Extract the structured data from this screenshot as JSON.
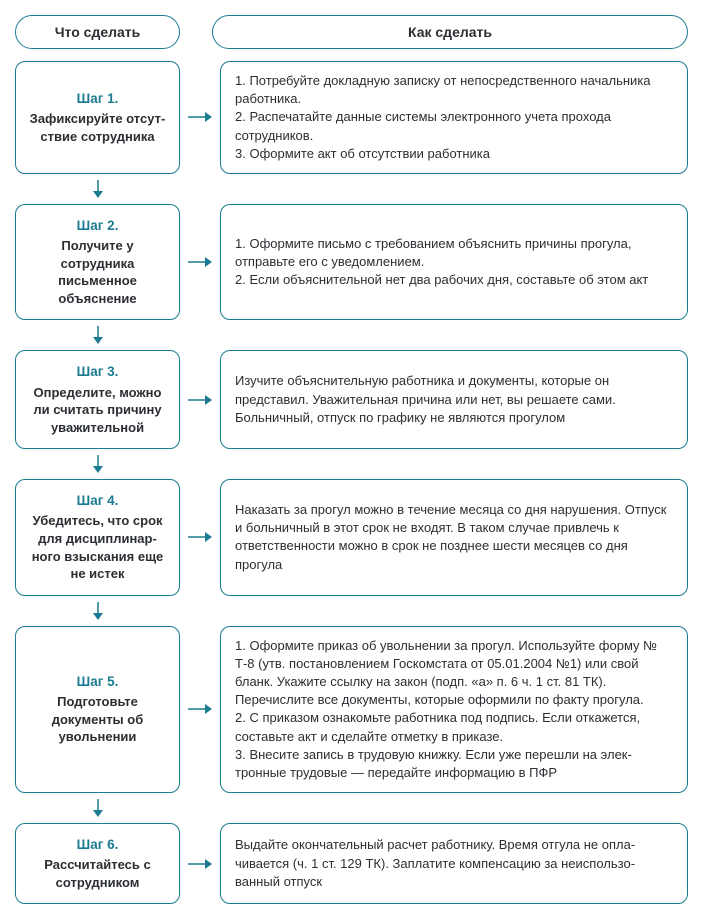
{
  "colors": {
    "border": "#1b7b90",
    "accent": "#1b7b90",
    "text": "#2b2f33",
    "background": "#ffffff"
  },
  "layout": {
    "step_box_width": 165,
    "gap": 12,
    "border_radius": 10,
    "header_radius": 18,
    "border_width": 1.5,
    "arrow_h_width": 24,
    "arrow_v_height": 18
  },
  "flow": "sequential-vertical",
  "headers": {
    "left": "Что сделать",
    "right": "Как сделать"
  },
  "steps": [
    {
      "title": "Шаг 1.",
      "text": "Зафиксируйте отсут­ствие сотрудника",
      "detail": "1. Потребуйте докладную записку от непосредственного начальни­ка работника.\n2. Распечатайте данные системы электронного учета прохода сотрудников.\n3. Оформите акт об отсутствии работника"
    },
    {
      "title": "Шаг 2.",
      "text": "Получите у сотрудника письменное объяснение",
      "detail": "1. Оформите письмо с требованием объяснить причины прогула, отправьте его с уведомлением.\n2. Если объяснительной нет два рабочих дня, составьте об этом акт"
    },
    {
      "title": "Шаг 3.",
      "text": "Определите, можно ли считать причину уважительной",
      "detail": "Изучите объяснительную работника и документы, которые он представил. Уважительная причина или нет, вы решаете сами. Больничный, отпуск по графику не являются прогулом"
    },
    {
      "title": "Шаг 4.",
      "text": "Убедитесь, что срок для дисциплинар­ного взыскания еще не истек",
      "detail": "Наказать за прогул можно в течение месяца со дня нарушения. Отпуск и больничный в этот срок не входят. В таком случае при­влечь к ответственности можно в срок не позднее шести месяцев со дня прогула"
    },
    {
      "title": "Шаг 5.",
      "text": "Подготовьте документы об увольнении",
      "detail": "1. Оформите приказ об увольнении за прогул. Используйте фор­му № Т-8 (утв. постановлением Госкомстата от 05.01.2004 №1) или свой бланк. Укажите ссылку на закон (подп. «а» п. 6 ч. 1 ст. 81 ТК). Перечислите все документы, которые оформили по факту прогула.\n2. С приказом ознакомьте работника под подпись. Если откажется, составьте акт и сделайте отметку в приказе.\n3. Внесите запись в трудовую книжку. Если уже перешли на элек­тронные трудовые — передайте информацию в ПФР"
    },
    {
      "title": "Шаг 6.",
      "text": "Рассчитайтесь с сотрудником",
      "detail": "Выдайте окончательный расчет работнику. Время отгула не опла­чивается (ч. 1 ст. 129 ТК). Заплатите компенсацию за неиспользо­ванный отпуск"
    }
  ]
}
